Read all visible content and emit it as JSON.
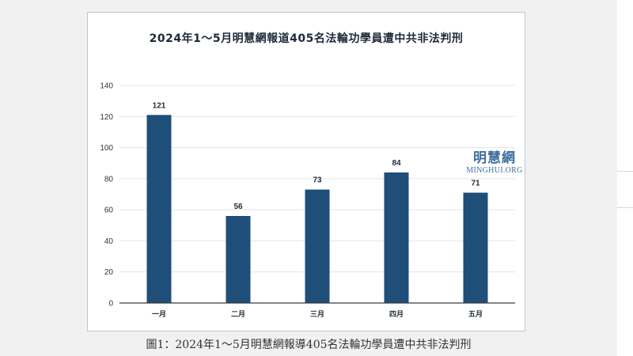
{
  "caption": "圖1：2024年1～5月明慧網報導405名法輪功學員遭中共非法判刑",
  "watermark": {
    "name_cn": "明慧網",
    "name_en": "MINGHUI.ORG"
  },
  "colors": {
    "bar": "#1f4e79",
    "grid": "#e3e3e3",
    "axis": "#3c3c3c"
  },
  "chart_data": {
    "type": "bar",
    "title": "2024年1～5月明慧網報道405名法輪功學員遭中共非法判刑",
    "xlabel": "",
    "ylabel": "",
    "categories": [
      "一月",
      "二月",
      "三月",
      "四月",
      "五月"
    ],
    "values": [
      121,
      56,
      73,
      84,
      71
    ],
    "data_labels": [
      "121",
      "56",
      "73",
      "84",
      "71"
    ],
    "ylim": [
      0,
      140
    ],
    "yticks": [
      0,
      20,
      40,
      60,
      80,
      100,
      120,
      140
    ],
    "grid": true,
    "legend": "none"
  }
}
